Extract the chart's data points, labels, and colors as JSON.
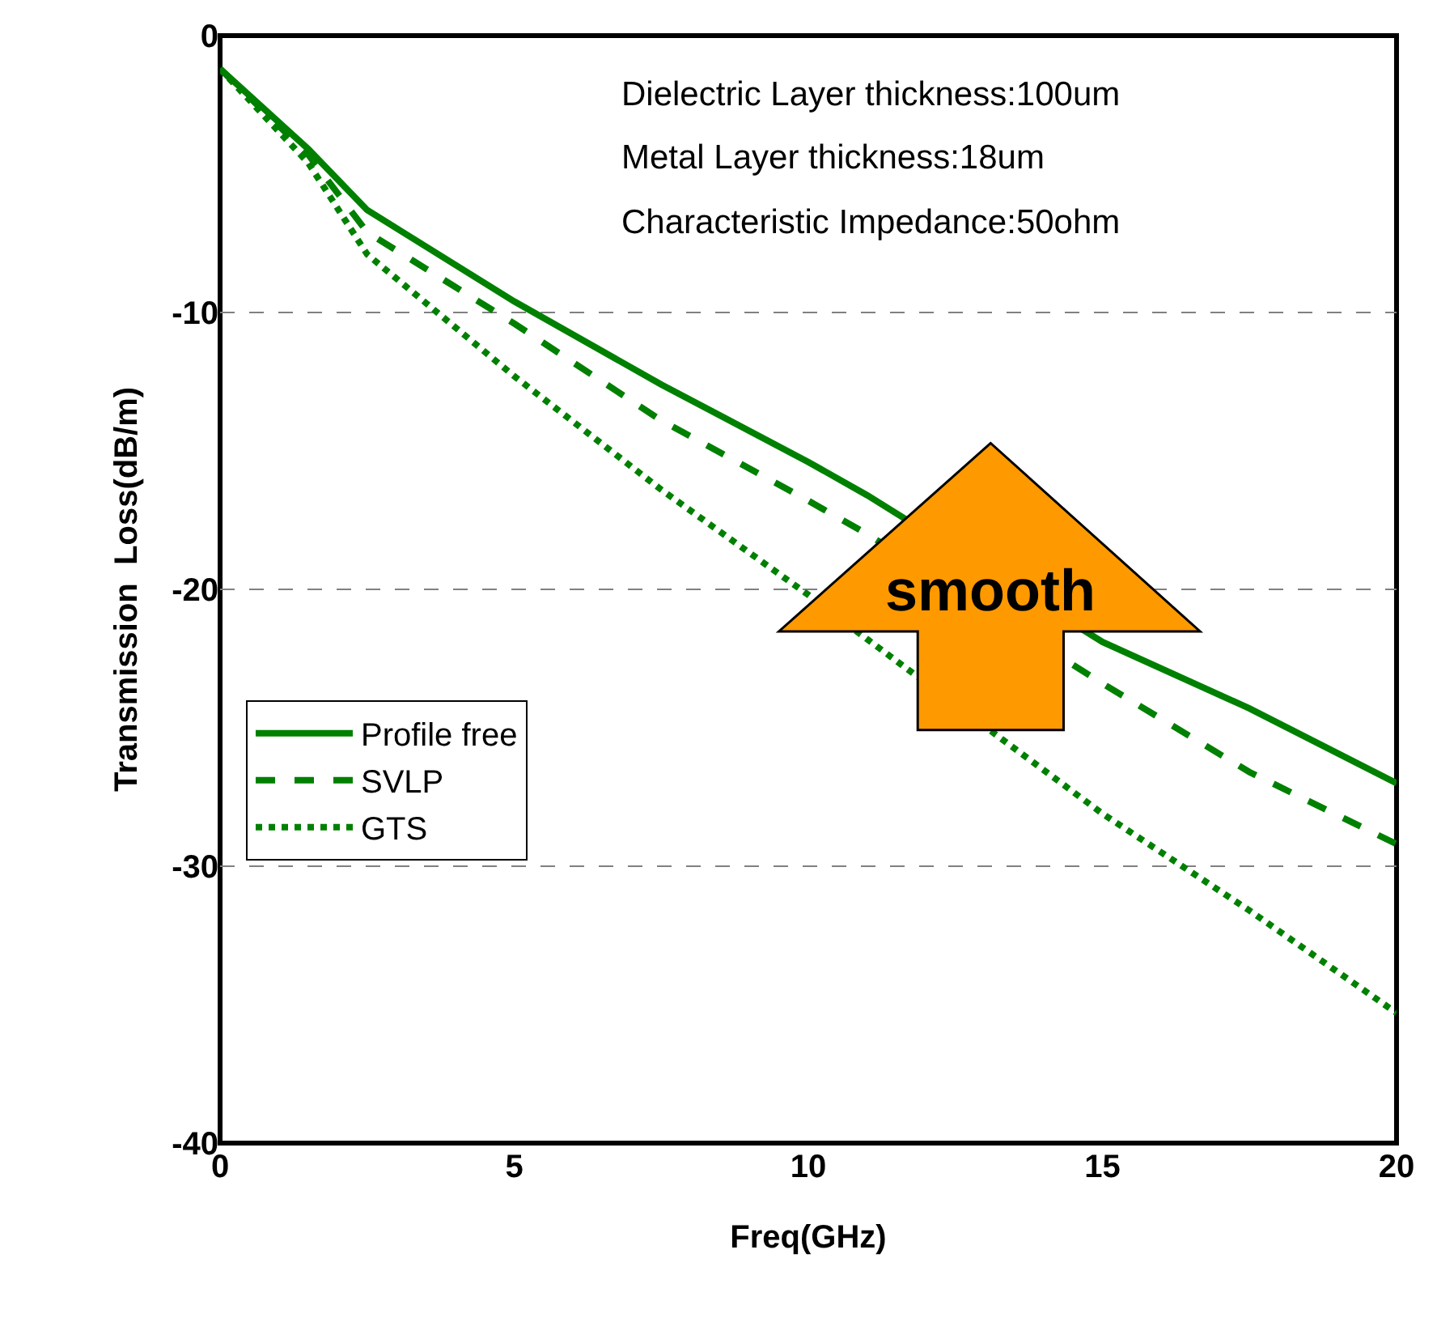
{
  "chart_data": {
    "type": "line",
    "xlabel": "Freq(GHz)",
    "ylabel": "Transmission  Loss(dB/m)",
    "x": [
      0,
      1.5,
      2.5,
      5,
      7.5,
      10,
      11,
      15,
      17.5,
      20
    ],
    "series": [
      {
        "name": "Profile free",
        "color": "#008000",
        "line_style": "solid",
        "values": [
          -1.2,
          -4.1,
          -6.3,
          -9.6,
          -12.6,
          -15.4,
          -16.6,
          -21.9,
          -24.3,
          -27.0
        ]
      },
      {
        "name": "SVLP",
        "color": "#008000",
        "line_style": "dashed",
        "values": [
          -1.2,
          -4.3,
          -7.1,
          -10.4,
          -13.9,
          -16.8,
          -18.0,
          -23.4,
          -26.6,
          -29.2
        ]
      },
      {
        "name": "GTS",
        "color": "#008000",
        "line_style": "dotted",
        "values": [
          -1.2,
          -4.6,
          -7.9,
          -12.3,
          -16.4,
          -20.2,
          -21.8,
          -28.1,
          -31.6,
          -35.3
        ]
      }
    ],
    "xlim": [
      0,
      20
    ],
    "xticks": [
      0,
      5,
      10,
      15,
      20
    ],
    "ylim": [
      -40,
      0
    ],
    "yticks": [
      -40,
      -30,
      -20,
      -10,
      0
    ],
    "grid": "y",
    "legend": "left",
    "marker": "none",
    "annotations": [
      "Dielectric Layer thickness:100um",
      "Metal Layer thickness:18um",
      "Characteristic Impedance:50ohm",
      "smooth"
    ]
  }
}
